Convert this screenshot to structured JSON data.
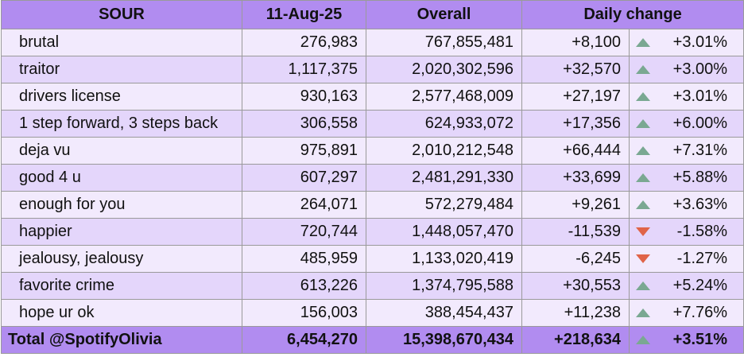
{
  "colors": {
    "header": "#b18cf0",
    "row_light": "#f2eafd",
    "row_dark": "#e4d6fb",
    "up": "#7aa892",
    "down": "#e06448"
  },
  "headers": {
    "album": "SOUR",
    "date": "11-Aug-25",
    "overall": "Overall",
    "daily": "Daily change"
  },
  "rows": [
    {
      "song": "brutal",
      "day": "276,983",
      "overall": "767,855,481",
      "change": "+8,100",
      "trend": "up",
      "pct": "+3.01%"
    },
    {
      "song": "traitor",
      "day": "1,117,375",
      "overall": "2,020,302,596",
      "change": "+32,570",
      "trend": "up",
      "pct": "+3.00%"
    },
    {
      "song": "drivers license",
      "day": "930,163",
      "overall": "2,577,468,009",
      "change": "+27,197",
      "trend": "up",
      "pct": "+3.01%"
    },
    {
      "song": "1 step forward, 3 steps back",
      "day": "306,558",
      "overall": "624,933,072",
      "change": "+17,356",
      "trend": "up",
      "pct": "+6.00%"
    },
    {
      "song": "deja vu",
      "day": "975,891",
      "overall": "2,010,212,548",
      "change": "+66,444",
      "trend": "up",
      "pct": "+7.31%"
    },
    {
      "song": "good 4 u",
      "day": "607,297",
      "overall": "2,481,291,330",
      "change": "+33,699",
      "trend": "up",
      "pct": "+5.88%"
    },
    {
      "song": "enough for you",
      "day": "264,071",
      "overall": "572,279,484",
      "change": "+9,261",
      "trend": "up",
      "pct": "+3.63%"
    },
    {
      "song": "happier",
      "day": "720,744",
      "overall": "1,448,057,470",
      "change": "-11,539",
      "trend": "down",
      "pct": "-1.58%"
    },
    {
      "song": "jealousy, jealousy",
      "day": "485,959",
      "overall": "1,133,020,419",
      "change": "-6,245",
      "trend": "down",
      "pct": "-1.27%"
    },
    {
      "song": "favorite crime",
      "day": "613,226",
      "overall": "1,374,795,588",
      "change": "+30,553",
      "trend": "up",
      "pct": "+5.24%"
    },
    {
      "song": "hope ur ok",
      "day": "156,003",
      "overall": "388,454,437",
      "change": "+11,238",
      "trend": "up",
      "pct": "+7.76%"
    }
  ],
  "total": {
    "label": "Total @SpotifyOlivia",
    "day": "6,454,270",
    "overall": "15,398,670,434",
    "change": "+218,634",
    "trend": "up",
    "pct": "+3.51%"
  }
}
